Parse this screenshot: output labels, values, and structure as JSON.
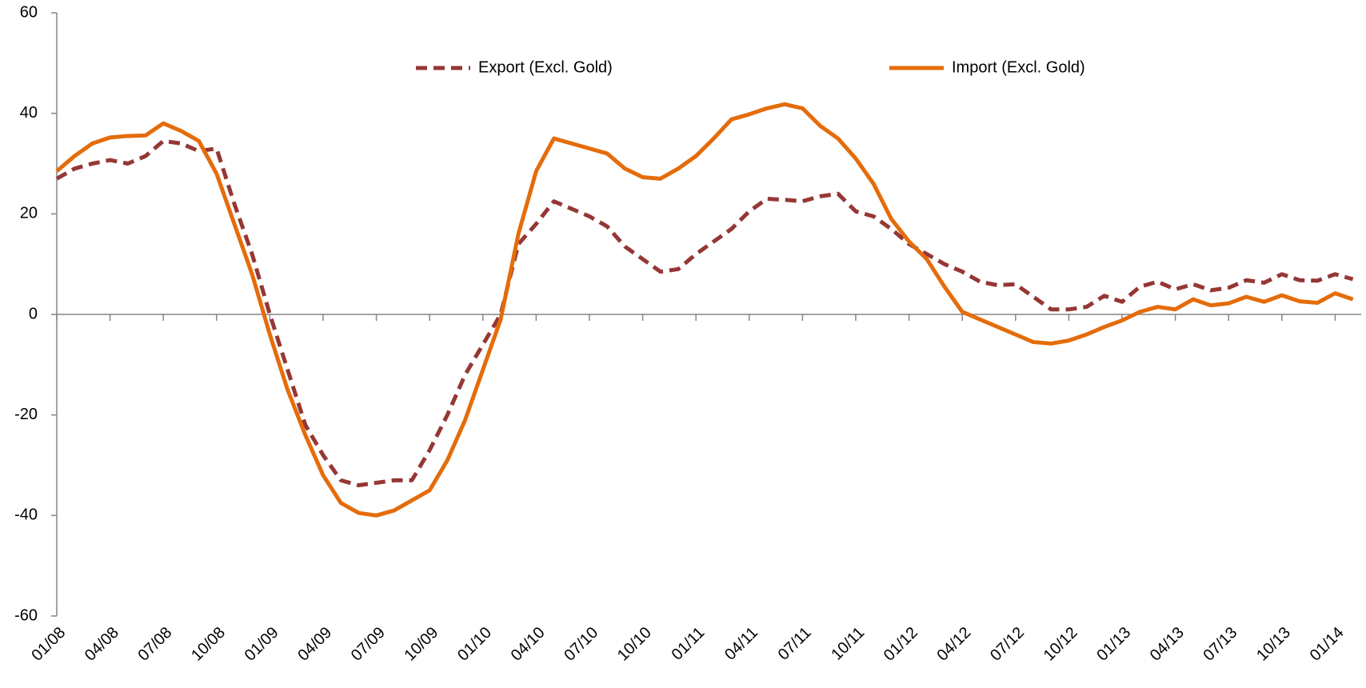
{
  "chart_data": {
    "type": "line",
    "categories": [
      "01/08",
      null,
      null,
      "04/08",
      null,
      null,
      "07/08",
      null,
      null,
      "10/08",
      null,
      null,
      "01/09",
      null,
      null,
      "04/09",
      null,
      null,
      "07/09",
      null,
      null,
      "10/09",
      null,
      null,
      "01/10",
      null,
      null,
      "04/10",
      null,
      null,
      "07/10",
      null,
      null,
      "10/10",
      null,
      null,
      "01/11",
      null,
      null,
      "04/11",
      null,
      null,
      "07/11",
      null,
      null,
      "10/11",
      null,
      null,
      "01/12",
      null,
      null,
      "04/12",
      null,
      null,
      "07/12",
      null,
      null,
      "10/12",
      null,
      null,
      "01/13",
      null,
      null,
      "04/13",
      null,
      null,
      "07/13",
      null,
      null,
      "10/13",
      null,
      null,
      "01/14",
      null
    ],
    "series": [
      {
        "name": "Export (Excl. Gold)",
        "color": "#953735",
        "dashed": true,
        "values": [
          27,
          29,
          30,
          30.7,
          30,
          31.5,
          34.5,
          34,
          32.5,
          33,
          22,
          12,
          0,
          -11,
          -22,
          -28,
          -33,
          -34,
          -33.5,
          -33,
          -33,
          -27,
          -20,
          -12,
          -6,
          0,
          14,
          18,
          22.5,
          21,
          19.5,
          17.5,
          13.5,
          11,
          8.5,
          9,
          12,
          14.5,
          17,
          20.5,
          23,
          22.8,
          22.5,
          23.5,
          24,
          20.5,
          19.5,
          17,
          14,
          12,
          10,
          8.5,
          6.5,
          5.8,
          6,
          3.5,
          1,
          1,
          1.5,
          3.7,
          2.5,
          5.5,
          6.5,
          5,
          6,
          4.8,
          5.3,
          6.8,
          6.3,
          8,
          6.8,
          6.7,
          8,
          7
        ]
      },
      {
        "name": "Import (Excl. Gold)",
        "color": "#e46c0a",
        "dashed": false,
        "values": [
          28.5,
          31.5,
          34,
          35.2,
          35.5,
          35.6,
          38,
          36.5,
          34.5,
          28,
          18,
          8,
          -4,
          -15,
          -24,
          -32,
          -37.5,
          -39.5,
          -40,
          -39,
          -37,
          -35,
          -29,
          -21,
          -11,
          -1,
          16,
          28.5,
          35,
          34,
          33,
          32,
          29,
          27.3,
          27,
          29,
          31.5,
          35,
          38.8,
          39.8,
          41,
          41.8,
          41,
          37.5,
          35,
          31,
          26,
          19,
          14.5,
          11,
          5.5,
          0.5,
          -1,
          -2.5,
          -4,
          -5.5,
          -5.8,
          -5.2,
          -4,
          -2.5,
          -1.2,
          0.5,
          1.5,
          1,
          3,
          1.8,
          2.2,
          3.5,
          2.5,
          3.8,
          2.6,
          2.3,
          4.2,
          3
        ]
      }
    ],
    "ylim": [
      -60,
      60
    ],
    "yticks": [
      -60,
      -40,
      -20,
      0,
      20,
      40,
      60
    ],
    "grid": false,
    "legend": "top"
  }
}
